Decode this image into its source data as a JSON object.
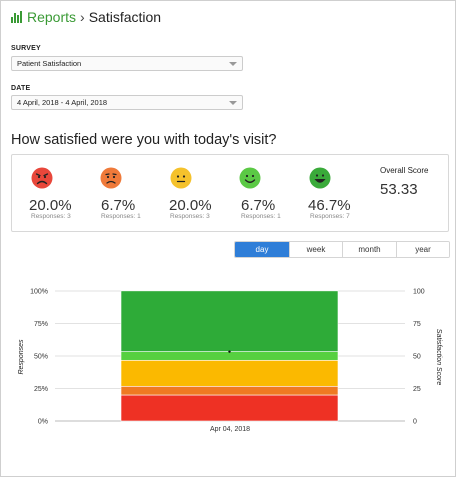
{
  "header": {
    "icon": "bar-chart-icon",
    "breadcrumb_root": "Reports",
    "separator": "›",
    "breadcrumb_current": "Satisfaction"
  },
  "survey": {
    "label": "SURVEY",
    "value": "Patient Satisfaction"
  },
  "date": {
    "label": "DATE",
    "value": "4 April, 2018 - 4 April, 2018"
  },
  "question": "How satisfied were you with today's visit?",
  "faces": [
    {
      "icon": "very-unhappy-face-icon",
      "color": "#e8473b",
      "percent": "20.0%",
      "responses": "Responses: 3"
    },
    {
      "icon": "unhappy-face-icon",
      "color": "#ef7a3a",
      "percent": "6.7%",
      "responses": "Responses: 1"
    },
    {
      "icon": "neutral-face-icon",
      "color": "#f5c22c",
      "percent": "20.0%",
      "responses": "Responses: 3"
    },
    {
      "icon": "happy-face-icon",
      "color": "#5bc945",
      "percent": "6.7%",
      "responses": "Responses: 1"
    },
    {
      "icon": "very-happy-face-icon",
      "color": "#3aaa3a",
      "percent": "46.7%",
      "responses": "Responses: 7"
    }
  ],
  "overall": {
    "label": "Overall Score",
    "value": "53.33"
  },
  "tabs": [
    {
      "label": "day",
      "active": true
    },
    {
      "label": "week",
      "active": false
    },
    {
      "label": "month",
      "active": false
    },
    {
      "label": "year",
      "active": false
    }
  ],
  "chart_data": {
    "type": "bar",
    "stacked": true,
    "categories": [
      "Apr 04, 2018"
    ],
    "series": [
      {
        "color": "#ee3124",
        "values": [
          20.0
        ]
      },
      {
        "color": "#ef7a22",
        "values": [
          6.7
        ]
      },
      {
        "color": "#fbb900",
        "values": [
          20.0
        ]
      },
      {
        "color": "#56d040",
        "values": [
          6.7
        ]
      },
      {
        "color": "#2eab38",
        "values": [
          46.7
        ]
      }
    ],
    "overlay_point": {
      "values": [
        53.33
      ]
    },
    "ylabel": "Responses",
    "y2label": "Satisfaction Score",
    "ylim": [
      0,
      100
    ],
    "y2lim": [
      0,
      100
    ],
    "y_ticks": [
      "0%",
      "25%",
      "50%",
      "75%",
      "100%"
    ],
    "y2_ticks": [
      "0",
      "25",
      "50",
      "75",
      "100"
    ],
    "grid": true
  }
}
